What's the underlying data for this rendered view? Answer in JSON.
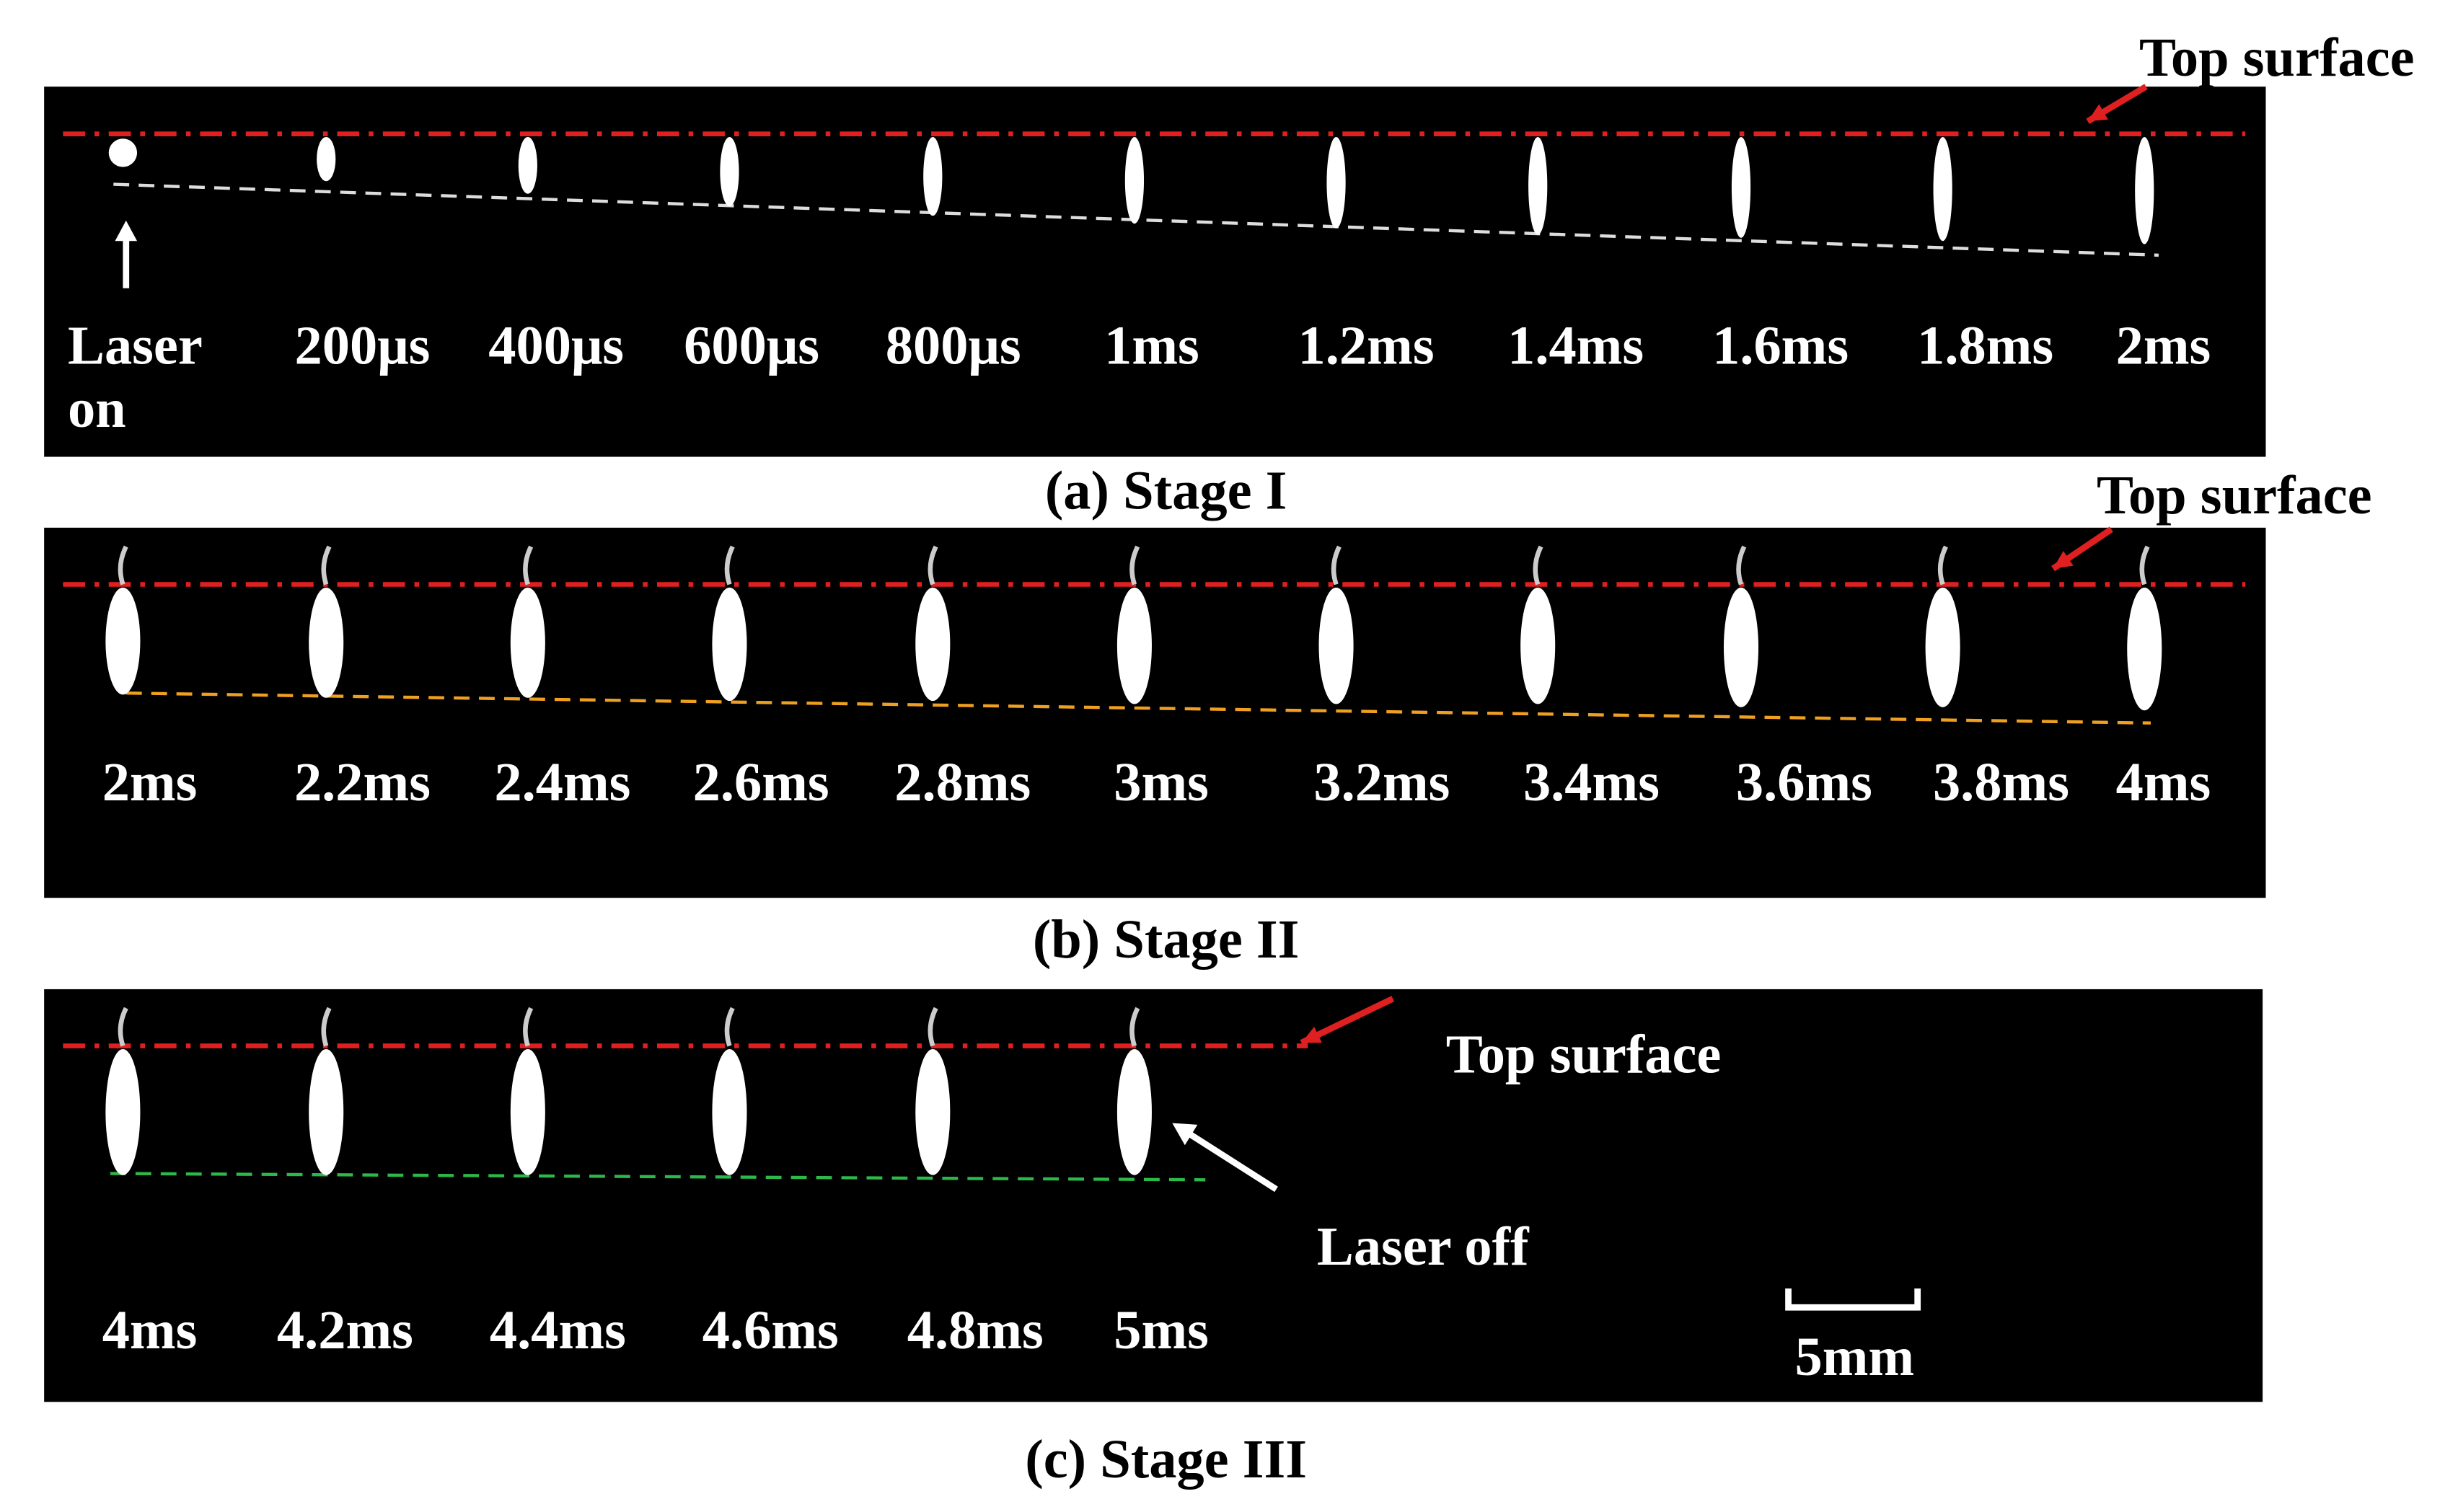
{
  "panels": [
    {
      "caption": "(a) Stage I",
      "top_surface": "Top surface",
      "time_labels": [
        "Laser on",
        "200μs",
        "400μs",
        "600μs",
        "800μs",
        "1ms",
        "1.2ms",
        "1.4ms",
        "1.6ms",
        "1.8ms",
        "2ms"
      ]
    },
    {
      "caption": "(b) Stage II",
      "top_surface": "Top surface",
      "time_labels": [
        "2ms",
        "2.2ms",
        "2.4ms",
        "2.6ms",
        "2.8ms",
        "3ms",
        "3.2ms",
        "3.4ms",
        "3.6ms",
        "3.8ms",
        "4ms"
      ]
    },
    {
      "caption": "(c) Stage III",
      "top_surface": "Top surface",
      "laser_off": "Laser off",
      "scale_bar": "5mm",
      "time_labels": [
        "4ms",
        "4.2ms",
        "4.4ms",
        "4.6ms",
        "4.8ms",
        "5ms"
      ]
    }
  ]
}
